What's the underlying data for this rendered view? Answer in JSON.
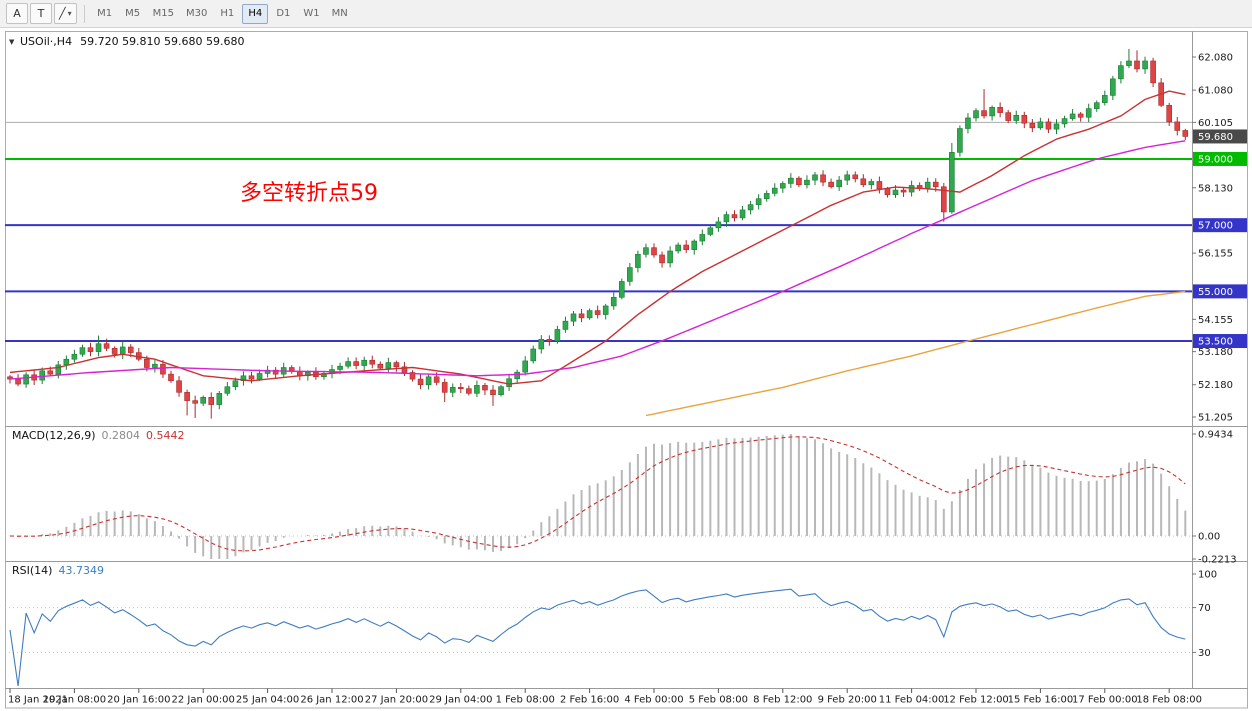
{
  "toolbar": {
    "tools": [
      {
        "id": "a",
        "label": "A"
      },
      {
        "id": "t",
        "label": "T"
      },
      {
        "id": "line",
        "label": "╱",
        "dropdown": "▾"
      }
    ],
    "timeframes": [
      "M1",
      "M5",
      "M15",
      "M30",
      "H1",
      "H4",
      "D1",
      "W1",
      "MN"
    ],
    "active_timeframe": "H4"
  },
  "chart_data": {
    "type": "candlestick",
    "symbol": "USOil",
    "timeframe": "H4",
    "header_symbol": "USOil·,H4",
    "last_quote_display": "59.720 59.810 59.680 59.680",
    "last_ohlc": {
      "open": "59.720",
      "high": "59.810",
      "low": "59.680",
      "close": "59.680"
    },
    "x_labels": [
      "18 Jan 2021",
      "19 Jan 08:00",
      "20 Jan 16:00",
      "22 Jan 00:00",
      "25 Jan 04:00",
      "26 Jan 12:00",
      "27 Jan 20:00",
      "29 Jan 04:00",
      "1 Feb 08:00",
      "2 Feb 16:00",
      "4 Feb 00:00",
      "5 Feb 08:00",
      "8 Feb 12:00",
      "9 Feb 20:00",
      "11 Feb 04:00",
      "12 Feb 12:00",
      "15 Feb 16:00",
      "17 Feb 00:00",
      "18 Feb 08:00"
    ],
    "bars_per_label": 8,
    "y_ticks": [
      "62.080",
      "61.080",
      "60.105",
      "58.130",
      "56.155",
      "54.155",
      "53.180",
      "52.180",
      "51.205"
    ],
    "y_min": 51.205,
    "y_max": 62.08,
    "first_open": 52.42,
    "closes": [
      52.35,
      52.2,
      52.48,
      52.32,
      52.6,
      52.5,
      52.78,
      52.95,
      53.1,
      53.3,
      53.18,
      53.42,
      53.28,
      53.1,
      53.32,
      53.15,
      52.95,
      52.7,
      52.8,
      52.5,
      52.3,
      51.95,
      51.7,
      51.62,
      51.8,
      51.58,
      51.92,
      52.12,
      52.3,
      52.45,
      52.35,
      52.52,
      52.62,
      52.5,
      52.7,
      52.58,
      52.45,
      52.56,
      52.42,
      52.52,
      52.64,
      52.74,
      52.88,
      52.76,
      52.92,
      52.8,
      52.68,
      52.85,
      52.72,
      52.55,
      52.35,
      52.18,
      52.42,
      52.25,
      51.95,
      52.1,
      52.06,
      51.92,
      52.16,
      52.02,
      51.88,
      52.12,
      52.36,
      52.56,
      52.9,
      53.26,
      53.55,
      53.5,
      53.85,
      54.1,
      54.32,
      54.2,
      54.42,
      54.3,
      54.56,
      54.82,
      55.3,
      55.72,
      56.12,
      56.32,
      56.1,
      55.86,
      56.22,
      56.4,
      56.26,
      56.52,
      56.72,
      56.92,
      57.1,
      57.32,
      57.22,
      57.46,
      57.62,
      57.8,
      57.96,
      58.12,
      58.26,
      58.42,
      58.22,
      58.36,
      58.52,
      58.3,
      58.16,
      58.36,
      58.52,
      58.4,
      58.22,
      58.32,
      58.1,
      57.92,
      58.06,
      58.0,
      58.2,
      58.1,
      58.3,
      58.16,
      57.4,
      59.2,
      59.92,
      60.24,
      60.46,
      60.3,
      60.56,
      60.4,
      60.16,
      60.32,
      60.08,
      59.94,
      60.12,
      59.9,
      60.06,
      60.22,
      60.36,
      60.26,
      60.52,
      60.7,
      60.92,
      61.42,
      61.82,
      61.96,
      61.72,
      61.96,
      61.3,
      60.62,
      60.12,
      59.86,
      59.68
    ],
    "wick_overrides": {
      "11": [
        0.18,
        0
      ],
      "22": [
        0,
        0.3
      ],
      "23": [
        0,
        0.35
      ],
      "25": [
        0,
        0.28
      ],
      "54": [
        0,
        0.2
      ],
      "60": [
        0,
        0.22
      ],
      "116": [
        0,
        0.18
      ],
      "117": [
        0.15,
        0
      ],
      "121": [
        0.5,
        0
      ],
      "139": [
        0.25,
        0
      ],
      "140": [
        0.2,
        0
      ]
    },
    "colors": {
      "up": "#2fa84f",
      "up_border": "#1d7c35",
      "down": "#e04343",
      "down_border": "#a92a2a"
    },
    "moving_averages": [
      {
        "name": "ma-fast",
        "color": "#c83232",
        "anchors": [
          [
            0,
            52.55
          ],
          [
            6,
            52.7
          ],
          [
            11,
            53.0
          ],
          [
            14,
            53.1
          ],
          [
            18,
            52.95
          ],
          [
            24,
            52.45
          ],
          [
            30,
            52.3
          ],
          [
            36,
            52.45
          ],
          [
            44,
            52.6
          ],
          [
            50,
            52.7
          ],
          [
            56,
            52.5
          ],
          [
            62,
            52.2
          ],
          [
            66,
            52.3
          ],
          [
            70,
            52.9
          ],
          [
            74,
            53.5
          ],
          [
            78,
            54.3
          ],
          [
            82,
            55.0
          ],
          [
            86,
            55.6
          ],
          [
            90,
            56.1
          ],
          [
            94,
            56.6
          ],
          [
            98,
            57.1
          ],
          [
            102,
            57.6
          ],
          [
            106,
            58.0
          ],
          [
            110,
            58.15
          ],
          [
            114,
            58.1
          ],
          [
            118,
            58.0
          ],
          [
            122,
            58.5
          ],
          [
            126,
            59.1
          ],
          [
            130,
            59.6
          ],
          [
            134,
            59.9
          ],
          [
            138,
            60.3
          ],
          [
            141,
            60.8
          ],
          [
            144,
            61.05
          ],
          [
            146,
            60.95
          ]
        ]
      },
      {
        "name": "ma-mid",
        "color": "#d622d6",
        "anchors": [
          [
            0,
            52.35
          ],
          [
            10,
            52.55
          ],
          [
            20,
            52.7
          ],
          [
            32,
            52.6
          ],
          [
            46,
            52.55
          ],
          [
            58,
            52.45
          ],
          [
            64,
            52.5
          ],
          [
            70,
            52.7
          ],
          [
            76,
            53.05
          ],
          [
            82,
            53.6
          ],
          [
            88,
            54.2
          ],
          [
            96,
            55.0
          ],
          [
            104,
            55.85
          ],
          [
            112,
            56.75
          ],
          [
            119,
            57.5
          ],
          [
            127,
            58.35
          ],
          [
            135,
            59.0
          ],
          [
            141,
            59.35
          ],
          [
            146,
            59.55
          ]
        ]
      },
      {
        "name": "ma-slow",
        "color": "#e8a33d",
        "anchors": [
          [
            79,
            51.25
          ],
          [
            88,
            51.7
          ],
          [
            96,
            52.1
          ],
          [
            104,
            52.6
          ],
          [
            112,
            53.05
          ],
          [
            119,
            53.5
          ],
          [
            127,
            54.0
          ],
          [
            135,
            54.5
          ],
          [
            141,
            54.85
          ],
          [
            146,
            55.0
          ]
        ]
      }
    ],
    "horizontal_lines": [
      {
        "price": 60.105,
        "color": "#ababab",
        "width": 1,
        "badge": null,
        "badge_bg": null
      },
      {
        "price": 59.0,
        "color": "#00bb00",
        "width": 2,
        "badge": "59.000",
        "badge_bg": "#00bb00"
      },
      {
        "price": 57.0,
        "color": "#3434c9",
        "width": 2,
        "badge": "57.000",
        "badge_bg": "#3434c9"
      },
      {
        "price": 55.0,
        "color": "#3434c9",
        "width": 2,
        "badge": "55.000",
        "badge_bg": "#3434c9"
      },
      {
        "price": 53.5,
        "color": "#3434c9",
        "width": 2,
        "badge": "53.500",
        "badge_bg": "#3434c9"
      }
    ],
    "current_price_badge": {
      "value": "59.680",
      "price": 59.68,
      "bg": "#4a4a4a"
    },
    "annotation": {
      "text": "多空转折点59",
      "color": "#ff0000"
    },
    "macd": {
      "label": "MACD(12,26,9)",
      "values": [
        "0.2804",
        "0.5442"
      ],
      "params": [
        12,
        26,
        9
      ],
      "y_ticks": [
        "0.9434",
        "0.00",
        "-0.2213"
      ],
      "y_max": 0.9434,
      "y_min": -0.2213,
      "hist_color": "#b8b8b8",
      "signal_color": "#c83232"
    },
    "rsi": {
      "label": "RSI(14)",
      "value": "43.7349",
      "period": 14,
      "y_ticks": [
        "100",
        "70",
        "30"
      ],
      "levels": [
        70,
        30
      ],
      "line_color": "#3e7dbf"
    }
  }
}
